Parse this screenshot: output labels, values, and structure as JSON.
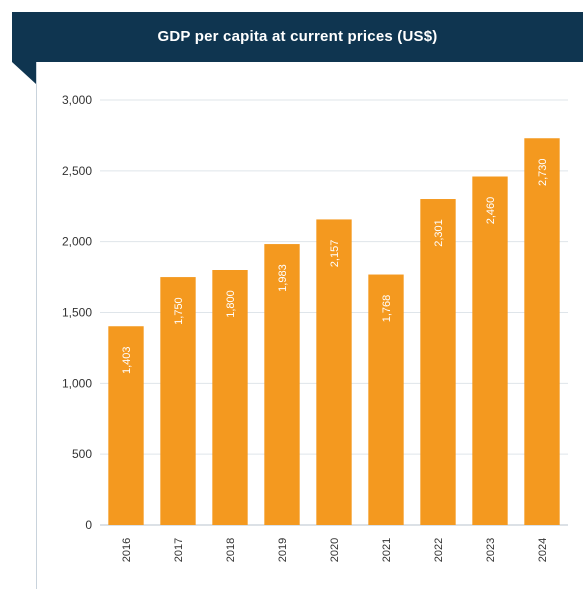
{
  "chart_data": {
    "type": "bar",
    "title": "GDP per capita at current prices (US$)",
    "categories": [
      "2016",
      "2017",
      "2018",
      "2019",
      "2020",
      "2021",
      "2022",
      "2023",
      "2024"
    ],
    "values": [
      1403,
      1750,
      1800,
      1983,
      2157,
      1768,
      2301,
      2460,
      2730
    ],
    "value_labels": [
      "1,403",
      "1,750",
      "1,800",
      "1,983",
      "2,157",
      "1,768",
      "2,301",
      "2,460",
      "2,730"
    ],
    "yticks": [
      0,
      500,
      1000,
      1500,
      2000,
      2500,
      3000
    ],
    "ytick_labels": [
      "0",
      "500",
      "1,000",
      "1,500",
      "2,000",
      "2,500",
      "3,000"
    ],
    "ylim": [
      0,
      3000
    ],
    "xlabel": "",
    "ylabel": "",
    "grid": true,
    "bar_color": "#f4991f",
    "header_color": "#0f3550"
  }
}
